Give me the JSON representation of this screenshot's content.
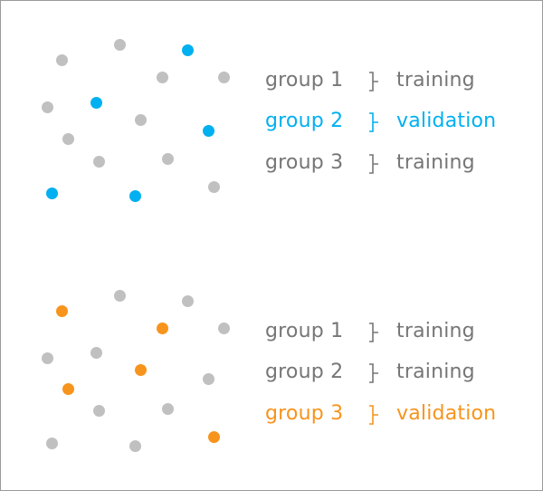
{
  "colors": {
    "text": "#767676",
    "dot": "#c0c0c0",
    "validation_blue": "#00b0f0",
    "validation_orange": "#f7941d"
  },
  "panels": [
    {
      "highlight": "validation_blue",
      "dots": [
        "dot",
        "dot",
        "hl",
        "dot",
        "dot",
        "dot",
        "hl",
        "dot",
        "hl",
        "dot",
        "dot",
        "dot",
        "hl",
        "hl",
        "dot"
      ],
      "rows": [
        {
          "group": "group 1",
          "role": "training",
          "highlighted": false
        },
        {
          "group": "group 2",
          "role": "validation",
          "highlighted": true
        },
        {
          "group": "group 3",
          "role": "training",
          "highlighted": false
        }
      ]
    },
    {
      "highlight": "validation_orange",
      "dots": [
        "hl",
        "dot",
        "dot",
        "hl",
        "dot",
        "dot",
        "dot",
        "hl",
        "dot",
        "hl",
        "dot",
        "dot",
        "dot",
        "dot",
        "hl"
      ],
      "rows": [
        {
          "group": "group 1",
          "role": "training",
          "highlighted": false
        },
        {
          "group": "group 2",
          "role": "training",
          "highlighted": false
        },
        {
          "group": "group 3",
          "role": "validation",
          "highlighted": true
        }
      ]
    }
  ]
}
